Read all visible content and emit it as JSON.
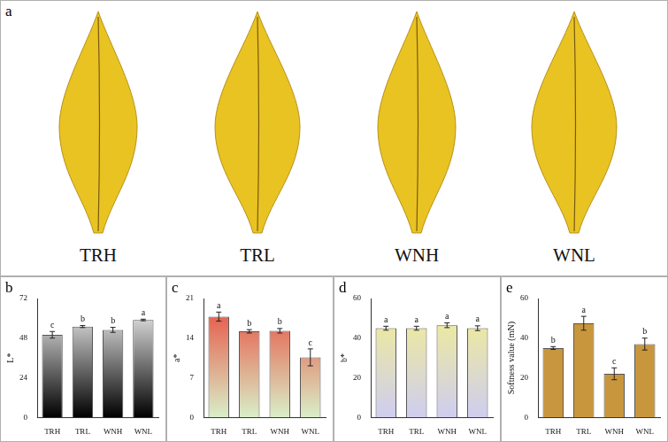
{
  "panel_a": {
    "panel": "a",
    "samples": [
      "TRH",
      "TRL",
      "WNH",
      "WNL"
    ]
  },
  "chart_data": [
    {
      "panel": "b",
      "type": "bar",
      "y_label": "L*",
      "categories": [
        "TRH",
        "TRL",
        "WNH",
        "WNL"
      ],
      "values": [
        50,
        55,
        53,
        59
      ],
      "errors": [
        2,
        0.6,
        1.5,
        0.5
      ],
      "letters": [
        "c",
        "b",
        "b",
        "a"
      ],
      "color": "#ffffff",
      "ylim": [
        0,
        72
      ],
      "yticks": [
        0,
        24,
        48,
        72
      ],
      "grid": false
    },
    {
      "panel": "c",
      "type": "bar",
      "y_label": "a*",
      "categories": [
        "TRH",
        "TRL",
        "WNH",
        "WNL"
      ],
      "values": [
        17.8,
        15.2,
        15.3,
        10.6
      ],
      "errors": [
        0.8,
        0.3,
        0.4,
        1.5
      ],
      "letters": [
        "a",
        "b",
        "b",
        "c"
      ],
      "color": "#e84a3c",
      "ylim": [
        0,
        21
      ],
      "yticks": [
        0,
        7,
        14,
        21
      ],
      "grid": false
    },
    {
      "panel": "d",
      "type": "bar",
      "y_label": "b*",
      "categories": [
        "TRH",
        "TRL",
        "WNH",
        "WNL"
      ],
      "values": [
        45,
        45,
        46.5,
        45
      ],
      "errors": [
        1,
        1,
        1.2,
        1.2
      ],
      "letters": [
        "a",
        "a",
        "a",
        "a"
      ],
      "color": "#f4f08c",
      "ylim": [
        0,
        60
      ],
      "yticks": [
        0,
        20,
        40,
        60
      ],
      "grid": false
    },
    {
      "panel": "e",
      "type": "bar",
      "y_label": "Softness value (mN)",
      "categories": [
        "TRH",
        "TRL",
        "WNH",
        "WNL"
      ],
      "values": [
        35,
        47.5,
        22,
        37
      ],
      "errors": [
        0.7,
        3.5,
        3,
        3
      ],
      "letters": [
        "b",
        "a",
        "c",
        "b"
      ],
      "color": "#c8963c",
      "ylim": [
        0,
        60
      ],
      "yticks": [
        0,
        20,
        40,
        60
      ],
      "grid": false
    }
  ]
}
